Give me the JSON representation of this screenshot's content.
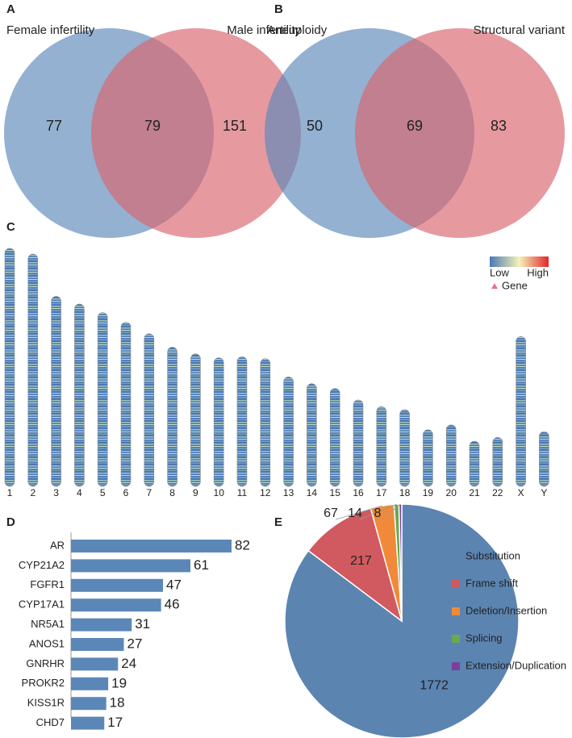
{
  "chart_data": [
    {
      "type": "venn",
      "panel": "A",
      "sets": [
        "Female infertility",
        "Male infertility"
      ],
      "values": [
        77,
        79,
        151
      ],
      "colors": [
        "#5b87b8",
        "#d9646d"
      ]
    },
    {
      "type": "venn",
      "panel": "B",
      "sets": [
        "Aneuploidy",
        "Structural variant"
      ],
      "values": [
        50,
        69,
        83
      ],
      "colors": [
        "#5b87b8",
        "#d9646d"
      ]
    },
    {
      "type": "ideogram",
      "panel": "C",
      "categories": [
        "1",
        "2",
        "3",
        "4",
        "5",
        "6",
        "7",
        "8",
        "9",
        "10",
        "11",
        "12",
        "13",
        "14",
        "15",
        "16",
        "17",
        "18",
        "19",
        "20",
        "21",
        "22",
        "X",
        "Y"
      ],
      "values": [
        248,
        242,
        198,
        190,
        181,
        171,
        159,
        145,
        138,
        134,
        135,
        133,
        114,
        107,
        102,
        90,
        83,
        80,
        59,
        64,
        47,
        51,
        156,
        57
      ],
      "legend": {
        "low": "Low",
        "high": "High",
        "gene": "Gene"
      },
      "color": "#4a78b5",
      "gene_color": "#e8709a"
    },
    {
      "type": "hbar",
      "panel": "D",
      "categories": [
        "AR",
        "CYP21A2",
        "FGFR1",
        "CYP17A1",
        "NR5A1",
        "ANOS1",
        "GNRHR",
        "PROKR2",
        "KISS1R",
        "CHD7"
      ],
      "values": [
        82,
        61,
        47,
        46,
        31,
        27,
        24,
        19,
        18,
        17
      ],
      "color": "#5b87b8"
    },
    {
      "type": "pie",
      "panel": "E",
      "categories": [
        "Substitution",
        "Frame shift",
        "Deletion/Insertion",
        "Splicing",
        "Extension/Duplication"
      ],
      "values": [
        1772,
        217,
        67,
        14,
        8
      ],
      "colors": [
        "#5b84b1",
        "#d05a5f",
        "#f08a3a",
        "#6aa84f",
        "#7b3fa0"
      ]
    }
  ]
}
